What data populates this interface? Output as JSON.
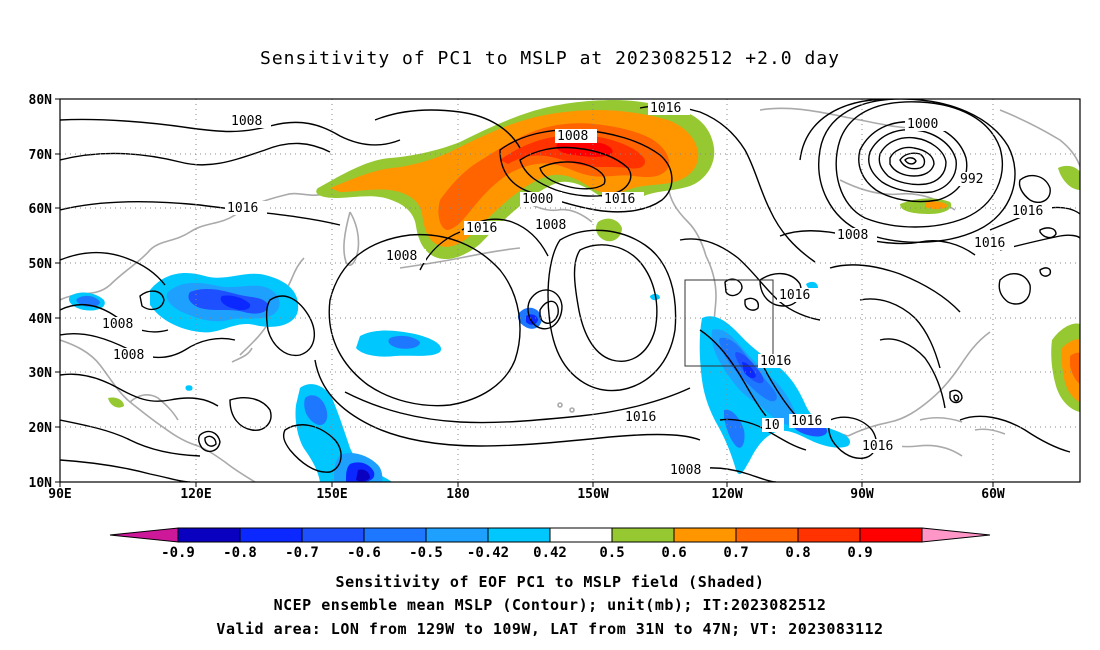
{
  "title": "Sensitivity of PC1 to MSLP at 2023082512 +2.0 day",
  "map": {
    "lat_labels": [
      "80N",
      "70N",
      "60N",
      "50N",
      "40N",
      "30N",
      "20N",
      "10N"
    ],
    "lon_labels": [
      "90E",
      "120E",
      "150E",
      "180",
      "150W",
      "120W",
      "90W",
      "60W"
    ],
    "valid_box": {
      "lon_from": "129W",
      "lon_to": "109W",
      "lat_from": "31N",
      "lat_to": "47N"
    },
    "contour_labels": [
      {
        "text": "1016"
      },
      {
        "text": "1008"
      },
      {
        "text": "1008"
      },
      {
        "text": "1000"
      },
      {
        "text": "1008"
      },
      {
        "text": "1016"
      },
      {
        "text": "1016"
      },
      {
        "text": "1008"
      },
      {
        "text": "1016"
      },
      {
        "text": "1008"
      },
      {
        "text": "1008"
      },
      {
        "text": "1016"
      },
      {
        "text": "1016"
      },
      {
        "text": "1000"
      },
      {
        "text": "992"
      },
      {
        "text": "1016"
      },
      {
        "text": "1008"
      },
      {
        "text": "1016"
      },
      {
        "text": "1016"
      },
      {
        "text": "1016"
      },
      {
        "text": "1016"
      },
      {
        "text": "1008"
      },
      {
        "text": "1008"
      },
      {
        "text": "10"
      }
    ]
  },
  "colorbar": {
    "labels": [
      "-0.9",
      "-0.8",
      "-0.7",
      "-0.6",
      "-0.5",
      "-0.42",
      "0.42",
      "0.5",
      "0.6",
      "0.7",
      "0.8",
      "0.9"
    ],
    "colors": [
      "#cc1899",
      "#0a00bf",
      "#0a28ff",
      "#1e50ff",
      "#1e78ff",
      "#1ea0ff",
      "#00c8ff",
      "#ffffff",
      "#96c832",
      "#ff9600",
      "#ff6400",
      "#ff3200",
      "#ff0000",
      "#ff96c8"
    ]
  },
  "captions": {
    "line1": "Sensitivity of EOF PC1 to MSLP field (Shaded)",
    "line2": "NCEP ensemble mean MSLP (Contour); unit(mb); IT:2023082512",
    "line3": "Valid area: LON from 129W to 109W, LAT from 31N to 47N; VT: 2023083112"
  }
}
